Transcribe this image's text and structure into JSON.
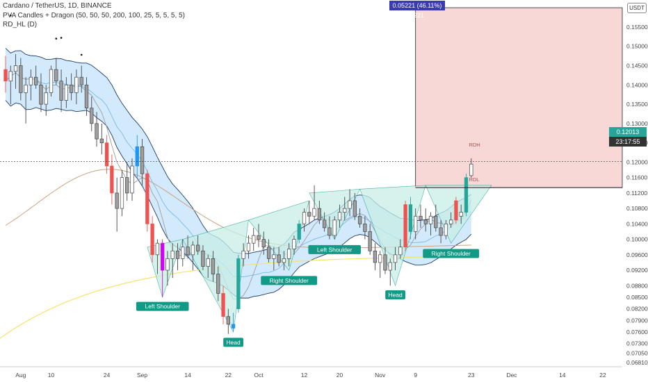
{
  "header": {
    "title": "Cardano / TetherUS, 1D, BINANCE",
    "indicator_1": "PVA Candles + Dragon (50, 50, 50, 200, 100, 25, 5, 5, 5, 5)",
    "indicator_2": "RD_HL (D)"
  },
  "colors": {
    "bull": "#26a69a",
    "bear": "#ef5350",
    "neutral": "#9e9e9e",
    "climax_up": "#2196f3",
    "climax_down": "#d500f9",
    "dragon_fill": "#bbdefb",
    "target_box": "#f8d7d7",
    "pattern_fill": "#c8eee6",
    "pattern_label": "#119a85",
    "ma_200": "#f7e36b",
    "ma_100": "#c9a37e"
  },
  "chart_data": {
    "type": "candlestick",
    "pair": "ADAUSDT",
    "ylim": [
      0.067,
      0.162
    ],
    "y_ticks": [
      "0.15500",
      "0.15000",
      "0.14500",
      "0.14000",
      "0.13500",
      "0.13000",
      "0.12500",
      "0.12000",
      "0.11600",
      "0.11200",
      "0.10800",
      "0.10400",
      "0.10000",
      "0.09600",
      "0.09200",
      "0.08800",
      "0.08500",
      "0.08200",
      "0.07900",
      "0.07600",
      "0.07300",
      "0.07050",
      "0.06810"
    ],
    "x_ticks": [
      "Aug",
      "10",
      "24",
      "Sep",
      "14",
      "22",
      "Oct",
      "12",
      "20",
      "Nov",
      "9",
      "23",
      "Dec",
      "14",
      "22"
    ],
    "last_price": "0.12013",
    "countdown": "23:17:55",
    "measure_label": "0.05221 (46.11%) 5221",
    "rd_labels": [
      "RDH",
      "RDL"
    ],
    "patterns": [
      {
        "label": "Left Shoulder"
      },
      {
        "label": "Head"
      },
      {
        "label": "Right Shoulder"
      },
      {
        "label": "Left Shoulder"
      },
      {
        "label": "Head"
      },
      {
        "label": "Right Shoulder"
      }
    ],
    "candles": [
      {
        "o": 0.144,
        "h": 0.1475,
        "l": 0.138,
        "c": 0.141,
        "t": "bear"
      },
      {
        "o": 0.141,
        "h": 0.145,
        "l": 0.135,
        "c": 0.1435,
        "t": "neutral"
      },
      {
        "o": 0.1435,
        "h": 0.148,
        "l": 0.139,
        "c": 0.145,
        "t": "neutral"
      },
      {
        "o": 0.145,
        "h": 0.147,
        "l": 0.136,
        "c": 0.138,
        "t": "neutral"
      },
      {
        "o": 0.138,
        "h": 0.142,
        "l": 0.13,
        "c": 0.14,
        "t": "neutral"
      },
      {
        "o": 0.14,
        "h": 0.144,
        "l": 0.136,
        "c": 0.142,
        "t": "neutral"
      },
      {
        "o": 0.142,
        "h": 0.145,
        "l": 0.139,
        "c": 0.14,
        "t": "neutral"
      },
      {
        "o": 0.14,
        "h": 0.143,
        "l": 0.133,
        "c": 0.135,
        "t": "neutral"
      },
      {
        "o": 0.135,
        "h": 0.14,
        "l": 0.132,
        "c": 0.138,
        "t": "neutral"
      },
      {
        "o": 0.138,
        "h": 0.145,
        "l": 0.137,
        "c": 0.144,
        "t": "neutral"
      },
      {
        "o": 0.144,
        "h": 0.147,
        "l": 0.14,
        "c": 0.141,
        "t": "neutral"
      },
      {
        "o": 0.141,
        "h": 0.144,
        "l": 0.133,
        "c": 0.136,
        "t": "neutral"
      },
      {
        "o": 0.136,
        "h": 0.142,
        "l": 0.134,
        "c": 0.14,
        "t": "neutral"
      },
      {
        "o": 0.14,
        "h": 0.143,
        "l": 0.136,
        "c": 0.138,
        "t": "neutral"
      },
      {
        "o": 0.138,
        "h": 0.144,
        "l": 0.135,
        "c": 0.142,
        "t": "neutral"
      },
      {
        "o": 0.142,
        "h": 0.145,
        "l": 0.138,
        "c": 0.14,
        "t": "neutral"
      },
      {
        "o": 0.14,
        "h": 0.142,
        "l": 0.132,
        "c": 0.134,
        "t": "neutral"
      },
      {
        "o": 0.134,
        "h": 0.137,
        "l": 0.128,
        "c": 0.13,
        "t": "neutral"
      },
      {
        "o": 0.13,
        "h": 0.133,
        "l": 0.124,
        "c": 0.126,
        "t": "neutral"
      },
      {
        "o": 0.126,
        "h": 0.13,
        "l": 0.122,
        "c": 0.125,
        "t": "neutral"
      },
      {
        "o": 0.125,
        "h": 0.127,
        "l": 0.117,
        "c": 0.119,
        "t": "bear"
      },
      {
        "o": 0.119,
        "h": 0.122,
        "l": 0.109,
        "c": 0.112,
        "t": "bear"
      },
      {
        "o": 0.112,
        "h": 0.116,
        "l": 0.102,
        "c": 0.108,
        "t": "neutral"
      },
      {
        "o": 0.108,
        "h": 0.118,
        "l": 0.106,
        "c": 0.116,
        "t": "neutral"
      },
      {
        "o": 0.116,
        "h": 0.12,
        "l": 0.11,
        "c": 0.112,
        "t": "neutral"
      },
      {
        "o": 0.112,
        "h": 0.121,
        "l": 0.11,
        "c": 0.119,
        "t": "neutral"
      },
      {
        "o": 0.119,
        "h": 0.127,
        "l": 0.116,
        "c": 0.124,
        "t": "climax_up"
      },
      {
        "o": 0.124,
        "h": 0.126,
        "l": 0.114,
        "c": 0.117,
        "t": "neutral"
      },
      {
        "o": 0.117,
        "h": 0.118,
        "l": 0.102,
        "c": 0.104,
        "t": "bear"
      },
      {
        "o": 0.104,
        "h": 0.106,
        "l": 0.094,
        "c": 0.096,
        "t": "bear"
      },
      {
        "o": 0.096,
        "h": 0.1,
        "l": 0.091,
        "c": 0.099,
        "t": "neutral"
      },
      {
        "o": 0.099,
        "h": 0.1,
        "l": 0.085,
        "c": 0.092,
        "t": "climax_down"
      },
      {
        "o": 0.092,
        "h": 0.097,
        "l": 0.088,
        "c": 0.095,
        "t": "neutral"
      },
      {
        "o": 0.095,
        "h": 0.099,
        "l": 0.09,
        "c": 0.097,
        "t": "neutral"
      },
      {
        "o": 0.097,
        "h": 0.099,
        "l": 0.092,
        "c": 0.095,
        "t": "neutral"
      },
      {
        "o": 0.095,
        "h": 0.1,
        "l": 0.093,
        "c": 0.098,
        "t": "neutral"
      },
      {
        "o": 0.098,
        "h": 0.101,
        "l": 0.095,
        "c": 0.096,
        "t": "neutral"
      },
      {
        "o": 0.096,
        "h": 0.0995,
        "l": 0.092,
        "c": 0.0985,
        "t": "neutral"
      },
      {
        "o": 0.0985,
        "h": 0.101,
        "l": 0.096,
        "c": 0.097,
        "t": "neutral"
      },
      {
        "o": 0.097,
        "h": 0.0985,
        "l": 0.092,
        "c": 0.093,
        "t": "neutral"
      },
      {
        "o": 0.093,
        "h": 0.096,
        "l": 0.09,
        "c": 0.095,
        "t": "neutral"
      },
      {
        "o": 0.095,
        "h": 0.097,
        "l": 0.089,
        "c": 0.091,
        "t": "neutral"
      },
      {
        "o": 0.091,
        "h": 0.093,
        "l": 0.084,
        "c": 0.086,
        "t": "neutral"
      },
      {
        "o": 0.086,
        "h": 0.088,
        "l": 0.078,
        "c": 0.08,
        "t": "bear"
      },
      {
        "o": 0.08,
        "h": 0.082,
        "l": 0.0755,
        "c": 0.078,
        "t": "neutral"
      },
      {
        "o": 0.078,
        "h": 0.081,
        "l": 0.076,
        "c": 0.077,
        "t": "climax_up"
      },
      {
        "o": 0.082,
        "h": 0.096,
        "l": 0.081,
        "c": 0.095,
        "t": "bull"
      },
      {
        "o": 0.095,
        "h": 0.099,
        "l": 0.093,
        "c": 0.097,
        "t": "neutral"
      },
      {
        "o": 0.097,
        "h": 0.101,
        "l": 0.095,
        "c": 0.099,
        "t": "neutral"
      },
      {
        "o": 0.099,
        "h": 0.103,
        "l": 0.097,
        "c": 0.101,
        "t": "neutral"
      },
      {
        "o": 0.101,
        "h": 0.104,
        "l": 0.098,
        "c": 0.1,
        "t": "neutral"
      },
      {
        "o": 0.1,
        "h": 0.102,
        "l": 0.096,
        "c": 0.098,
        "t": "neutral"
      },
      {
        "o": 0.098,
        "h": 0.1,
        "l": 0.094,
        "c": 0.095,
        "t": "neutral"
      },
      {
        "o": 0.095,
        "h": 0.098,
        "l": 0.092,
        "c": 0.096,
        "t": "neutral"
      },
      {
        "o": 0.096,
        "h": 0.098,
        "l": 0.093,
        "c": 0.094,
        "t": "neutral"
      },
      {
        "o": 0.094,
        "h": 0.097,
        "l": 0.092,
        "c": 0.095,
        "t": "neutral"
      },
      {
        "o": 0.095,
        "h": 0.099,
        "l": 0.093,
        "c": 0.0975,
        "t": "neutral"
      },
      {
        "o": 0.0975,
        "h": 0.101,
        "l": 0.096,
        "c": 0.1,
        "t": "neutral"
      },
      {
        "o": 0.1,
        "h": 0.105,
        "l": 0.099,
        "c": 0.104,
        "t": "bull"
      },
      {
        "o": 0.104,
        "h": 0.108,
        "l": 0.102,
        "c": 0.107,
        "t": "neutral"
      },
      {
        "o": 0.107,
        "h": 0.11,
        "l": 0.104,
        "c": 0.106,
        "t": "neutral"
      },
      {
        "o": 0.106,
        "h": 0.114,
        "l": 0.105,
        "c": 0.108,
        "t": "neutral"
      },
      {
        "o": 0.108,
        "h": 0.11,
        "l": 0.104,
        "c": 0.105,
        "t": "neutral"
      },
      {
        "o": 0.105,
        "h": 0.107,
        "l": 0.102,
        "c": 0.103,
        "t": "neutral"
      },
      {
        "o": 0.103,
        "h": 0.106,
        "l": 0.1,
        "c": 0.101,
        "t": "neutral"
      },
      {
        "o": 0.101,
        "h": 0.106,
        "l": 0.1,
        "c": 0.105,
        "t": "neutral"
      },
      {
        "o": 0.105,
        "h": 0.109,
        "l": 0.103,
        "c": 0.107,
        "t": "neutral"
      },
      {
        "o": 0.107,
        "h": 0.111,
        "l": 0.105,
        "c": 0.108,
        "t": "neutral"
      },
      {
        "o": 0.108,
        "h": 0.113,
        "l": 0.106,
        "c": 0.11,
        "t": "neutral"
      },
      {
        "o": 0.11,
        "h": 0.112,
        "l": 0.105,
        "c": 0.106,
        "t": "neutral"
      },
      {
        "o": 0.106,
        "h": 0.108,
        "l": 0.103,
        "c": 0.104,
        "t": "neutral"
      },
      {
        "o": 0.104,
        "h": 0.106,
        "l": 0.1,
        "c": 0.102,
        "t": "neutral"
      },
      {
        "o": 0.102,
        "h": 0.104,
        "l": 0.096,
        "c": 0.097,
        "t": "neutral"
      },
      {
        "o": 0.097,
        "h": 0.099,
        "l": 0.092,
        "c": 0.094,
        "t": "neutral"
      },
      {
        "o": 0.094,
        "h": 0.097,
        "l": 0.09,
        "c": 0.096,
        "t": "neutral"
      },
      {
        "o": 0.096,
        "h": 0.098,
        "l": 0.091,
        "c": 0.092,
        "t": "neutral"
      },
      {
        "o": 0.092,
        "h": 0.095,
        "l": 0.088,
        "c": 0.094,
        "t": "neutral"
      },
      {
        "o": 0.094,
        "h": 0.098,
        "l": 0.092,
        "c": 0.096,
        "t": "neutral"
      },
      {
        "o": 0.096,
        "h": 0.1,
        "l": 0.095,
        "c": 0.098,
        "t": "neutral"
      },
      {
        "o": 0.098,
        "h": 0.11,
        "l": 0.097,
        "c": 0.109,
        "t": "bear"
      },
      {
        "o": 0.109,
        "h": 0.111,
        "l": 0.1,
        "c": 0.102,
        "t": "bull"
      },
      {
        "o": 0.102,
        "h": 0.108,
        "l": 0.1,
        "c": 0.106,
        "t": "neutral"
      },
      {
        "o": 0.106,
        "h": 0.109,
        "l": 0.103,
        "c": 0.105,
        "t": "neutral"
      },
      {
        "o": 0.105,
        "h": 0.108,
        "l": 0.102,
        "c": 0.104,
        "t": "neutral"
      },
      {
        "o": 0.104,
        "h": 0.107,
        "l": 0.101,
        "c": 0.106,
        "t": "neutral"
      },
      {
        "o": 0.106,
        "h": 0.109,
        "l": 0.102,
        "c": 0.103,
        "t": "neutral"
      },
      {
        "o": 0.103,
        "h": 0.105,
        "l": 0.099,
        "c": 0.101,
        "t": "neutral"
      },
      {
        "o": 0.101,
        "h": 0.105,
        "l": 0.1,
        "c": 0.104,
        "t": "neutral"
      },
      {
        "o": 0.104,
        "h": 0.107,
        "l": 0.103,
        "c": 0.105,
        "t": "neutral"
      },
      {
        "o": 0.105,
        "h": 0.111,
        "l": 0.104,
        "c": 0.11,
        "t": "bear"
      },
      {
        "o": 0.106,
        "h": 0.109,
        "l": 0.104,
        "c": 0.107,
        "t": "neutral"
      },
      {
        "o": 0.107,
        "h": 0.117,
        "l": 0.106,
        "c": 0.116,
        "t": "bull"
      },
      {
        "o": 0.1165,
        "h": 0.121,
        "l": 0.116,
        "c": 0.1195,
        "t": "neutral"
      }
    ]
  }
}
